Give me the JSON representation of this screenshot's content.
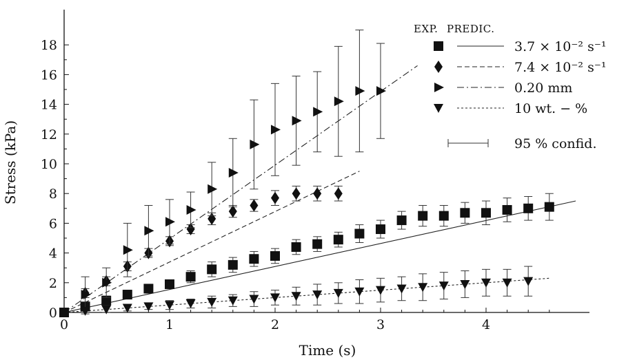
{
  "chart_data": {
    "type": "scatter",
    "xlabel": "Time (s)",
    "ylabel": "Stress (kPa)",
    "xlim": [
      0,
      4.8
    ],
    "ylim": [
      0,
      18.5
    ],
    "xticks": [
      "0",
      "1",
      "2",
      "3",
      "4"
    ],
    "yticks": [
      "0",
      "2",
      "4",
      "6",
      "8",
      "10",
      "12",
      "14",
      "16",
      "18"
    ],
    "legend": {
      "placement": "top-right",
      "header_exp": "EXP.",
      "header_pred": "PREDIC.",
      "confidence_label": "95 % confid."
    },
    "origin_point": [
      0,
      0
    ],
    "series": [
      {
        "name": "3.7 × 10⁻² s⁻¹",
        "marker": "square",
        "line": "solid",
        "x": [
          0.2,
          0.4,
          0.6,
          0.8,
          1.0,
          1.2,
          1.4,
          1.6,
          1.8,
          2.0,
          2.2,
          2.4,
          2.6,
          2.8,
          3.0,
          3.2,
          3.4,
          3.6,
          3.8,
          4.0,
          4.2,
          4.4,
          4.6
        ],
        "y": [
          0.4,
          0.8,
          1.2,
          1.6,
          1.9,
          2.4,
          2.9,
          3.2,
          3.6,
          3.8,
          4.4,
          4.6,
          4.9,
          5.3,
          5.6,
          6.2,
          6.5,
          6.5,
          6.7,
          6.7,
          6.9,
          7.0,
          7.1
        ],
        "err": [
          0.3,
          0.3,
          0.3,
          0.3,
          0.3,
          0.4,
          0.5,
          0.5,
          0.5,
          0.5,
          0.5,
          0.5,
          0.5,
          0.6,
          0.6,
          0.6,
          0.7,
          0.7,
          0.7,
          0.8,
          0.8,
          0.8,
          0.9
        ],
        "prediction": {
          "x": [
            0,
            4.85
          ],
          "y": [
            0,
            7.5
          ]
        }
      },
      {
        "name": "7.4 × 10⁻² s⁻¹",
        "marker": "diamond",
        "line": "dashed",
        "x": [
          0.2,
          0.4,
          0.6,
          0.8,
          1.0,
          1.2,
          1.4,
          1.6,
          1.8,
          2.0,
          2.2,
          2.4,
          2.6
        ],
        "y": [
          1.3,
          2.1,
          3.1,
          4.0,
          4.8,
          5.6,
          6.3,
          6.8,
          7.2,
          7.7,
          8.0,
          8.0,
          8.0
        ],
        "err": [
          0.3,
          0.3,
          0.3,
          0.3,
          0.3,
          0.3,
          0.4,
          0.4,
          0.4,
          0.5,
          0.5,
          0.5,
          0.5
        ],
        "prediction": {
          "x": [
            0,
            2.8
          ],
          "y": [
            0,
            9.5
          ]
        }
      },
      {
        "name": "0.20 mm",
        "marker": "triangle-right",
        "line": "dashdot",
        "x": [
          0.2,
          0.4,
          0.6,
          0.8,
          1.0,
          1.2,
          1.4,
          1.6,
          1.8,
          2.0,
          2.2,
          2.4,
          2.6,
          2.8,
          3.0
        ],
        "y": [
          1.2,
          2.0,
          4.2,
          5.5,
          6.1,
          6.9,
          8.3,
          9.4,
          11.3,
          12.3,
          12.9,
          13.5,
          14.2,
          14.9,
          14.9
        ],
        "err": [
          1.2,
          1.0,
          1.8,
          1.7,
          1.5,
          1.2,
          1.8,
          2.3,
          3.0,
          3.1,
          3.0,
          2.7,
          3.7,
          4.1,
          3.2
        ],
        "prediction": {
          "x": [
            0,
            3.35
          ],
          "y": [
            0,
            16.6
          ]
        }
      },
      {
        "name": "10 wt. − %",
        "marker": "triangle-down",
        "line": "dotted",
        "x": [
          0.2,
          0.4,
          0.6,
          0.8,
          1.0,
          1.2,
          1.4,
          1.6,
          1.8,
          2.0,
          2.2,
          2.4,
          2.6,
          2.8,
          3.0,
          3.2,
          3.4,
          3.6,
          3.8,
          4.0,
          4.2,
          4.4
        ],
        "y": [
          0.1,
          0.2,
          0.3,
          0.4,
          0.5,
          0.6,
          0.7,
          0.8,
          0.9,
          1.0,
          1.1,
          1.2,
          1.3,
          1.4,
          1.5,
          1.6,
          1.7,
          1.8,
          1.9,
          2.0,
          2.0,
          2.1
        ],
        "err": [
          0.2,
          0.2,
          0.2,
          0.2,
          0.3,
          0.3,
          0.4,
          0.4,
          0.5,
          0.5,
          0.6,
          0.7,
          0.7,
          0.8,
          0.8,
          0.8,
          0.9,
          0.9,
          0.9,
          0.9,
          0.9,
          1.0
        ],
        "prediction": {
          "x": [
            0,
            4.6
          ],
          "y": [
            0,
            2.3
          ]
        }
      }
    ]
  }
}
